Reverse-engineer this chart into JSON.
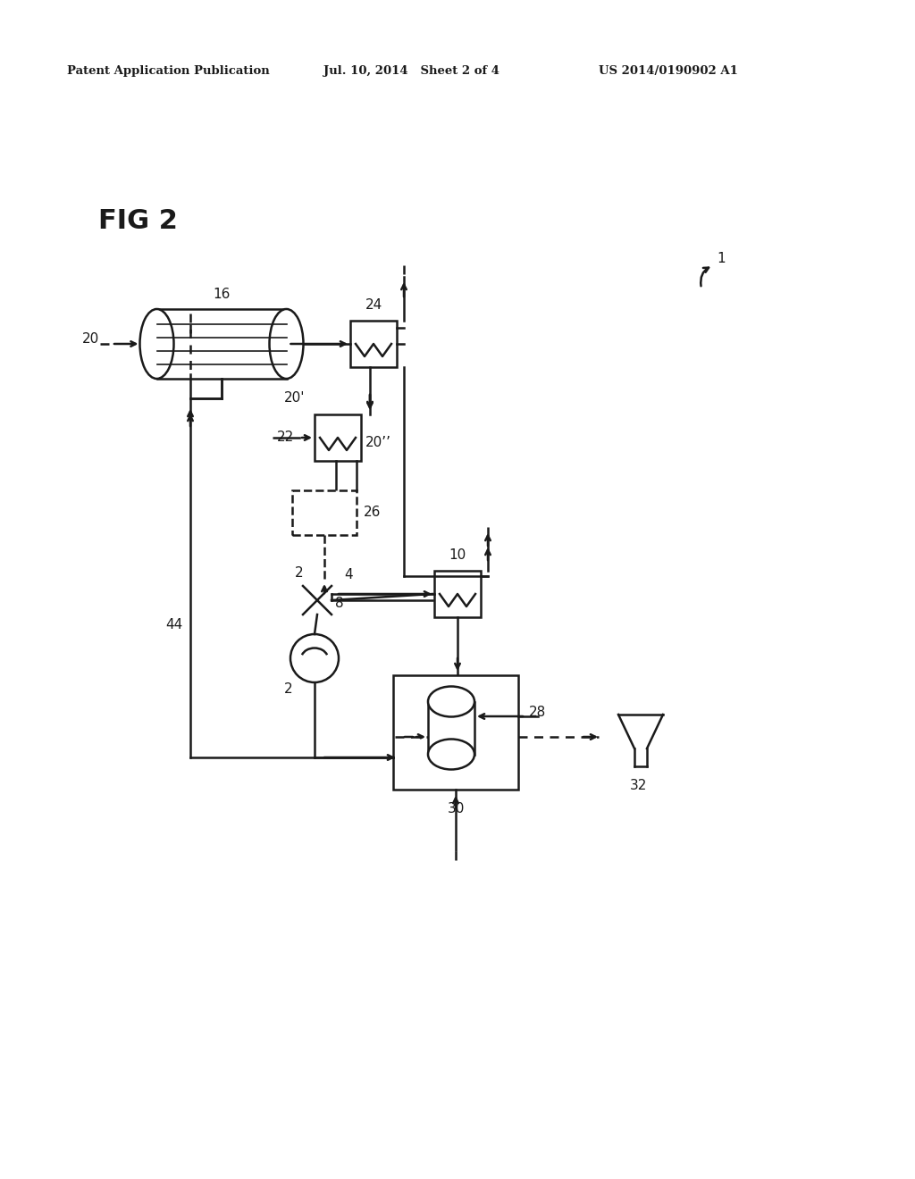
{
  "bg_color": "#ffffff",
  "header_left": "Patent Application Publication",
  "header_mid": "Jul. 10, 2014   Sheet 2 of 4",
  "header_right": "US 2014/0190902 A1",
  "fig_label": "FIG 2",
  "label_1": "1",
  "label_16": "16",
  "label_20": "20",
  "label_20p": "20'",
  "label_20pp": "20’’",
  "label_22": "22",
  "label_24": "24",
  "label_26": "26",
  "label_2a": "2",
  "label_2b": "2",
  "label_4": "4",
  "label_8": "8",
  "label_10": "10",
  "label_28": "28",
  "label_30": "30",
  "label_32": "32",
  "label_44": "44"
}
